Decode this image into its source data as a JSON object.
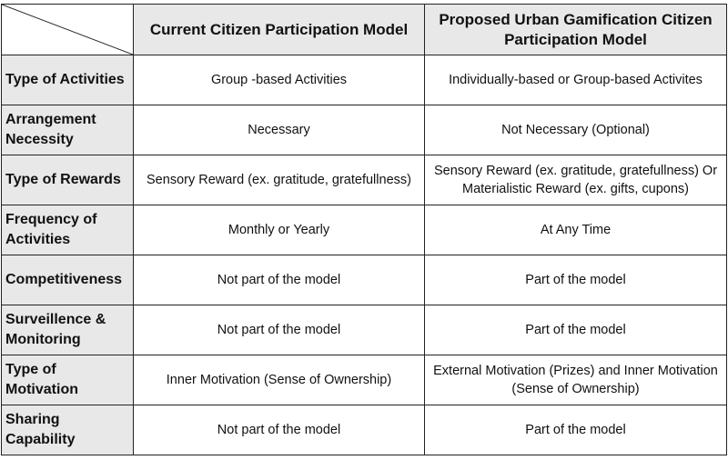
{
  "columns": [
    "Current Citizen Participation Model",
    "Proposed Urban Gamification Citizen Participation Model"
  ],
  "rows": [
    {
      "label": "Type of Activities",
      "current": "Group -based Activities",
      "proposed": "Individually-based or Group-based Activites"
    },
    {
      "label": "Arrangement Necessity",
      "current": "Necessary",
      "proposed": "Not Necessary (Optional)"
    },
    {
      "label": "Type of Rewards",
      "current": "Sensory Reward (ex. gratitude, gratefullness)",
      "proposed": "Sensory Reward (ex. gratitude, gratefullness) Or Materialistic Reward (ex. gifts, cupons)"
    },
    {
      "label": "Frequency of Activities",
      "current": "Monthly or Yearly",
      "proposed": "At Any Time"
    },
    {
      "label": "Competitiveness",
      "current": "Not part of the model",
      "proposed": "Part of the model"
    },
    {
      "label": "Surveillence & Monitoring",
      "current": "Not part of the model",
      "proposed": "Part of the model"
    },
    {
      "label": "Type of Motivation",
      "current": "Inner Motivation (Sense of Ownership)",
      "proposed": "External Motivation (Prizes) and Inner Motivation (Sense of Ownership)"
    },
    {
      "label": "Sharing Capability",
      "current": "Not part of the model",
      "proposed": "Part of the model"
    }
  ]
}
